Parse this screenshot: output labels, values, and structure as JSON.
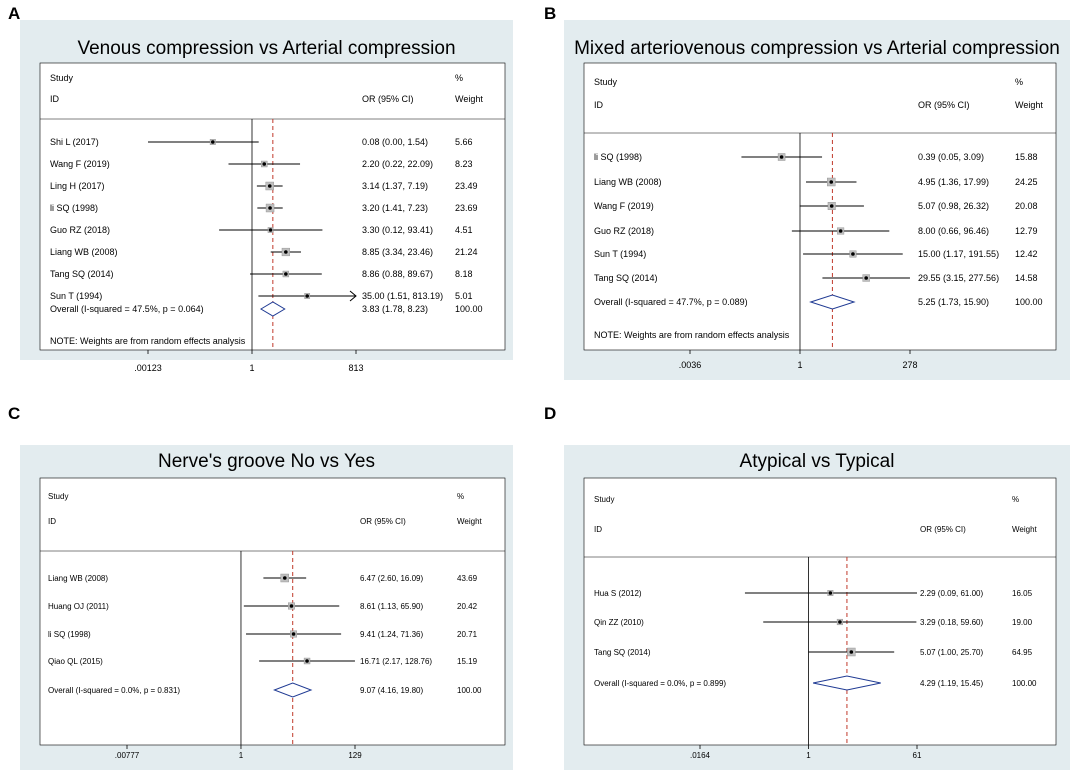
{
  "chart_data": [
    {
      "type": "forest",
      "panel_label": "A",
      "title": "Venous compression vs Arterial compression",
      "header": {
        "study": "Study",
        "id": "ID",
        "or_ci": "OR (95% CI)",
        "pct": "%",
        "weight": "Weight"
      },
      "studies": [
        {
          "name": "Shi L (2017)",
          "or": 0.08,
          "lo": 0.0,
          "hi": 1.54,
          "label": "0.08 (0.00, 1.54)",
          "weight": "5.66"
        },
        {
          "name": "Wang F (2019)",
          "or": 2.2,
          "lo": 0.22,
          "hi": 22.09,
          "label": "2.20 (0.22, 22.09)",
          "weight": "8.23"
        },
        {
          "name": "Ling H (2017)",
          "or": 3.14,
          "lo": 1.37,
          "hi": 7.19,
          "label": "3.14 (1.37, 7.19)",
          "weight": "23.49"
        },
        {
          "name": "li SQ (1998)",
          "or": 3.2,
          "lo": 1.41,
          "hi": 7.23,
          "label": "3.20 (1.41, 7.23)",
          "weight": "23.69"
        },
        {
          "name": "Guo RZ (2018)",
          "or": 3.3,
          "lo": 0.12,
          "hi": 93.41,
          "label": "3.30 (0.12, 93.41)",
          "weight": "4.51"
        },
        {
          "name": "Liang WB (2008)",
          "or": 8.85,
          "lo": 3.34,
          "hi": 23.46,
          "label": "8.85 (3.34, 23.46)",
          "weight": "21.24"
        },
        {
          "name": "Tang SQ (2014)",
          "or": 8.86,
          "lo": 0.88,
          "hi": 89.67,
          "label": "8.86 (0.88, 89.67)",
          "weight": "8.18"
        },
        {
          "name": "Sun T (1994)",
          "or": 35.0,
          "lo": 1.51,
          "hi": 813.19,
          "label": "35.00 (1.51, 813.19)",
          "weight": "5.01"
        }
      ],
      "overall": {
        "label": "Overall  (I-squared = 47.5%, p = 0.064)",
        "or": 3.83,
        "lo": 1.78,
        "hi": 8.23,
        "ci_label": "3.83 (1.78, 8.23)",
        "weight": "100.00"
      },
      "note": "NOTE: Weights are from random effects analysis",
      "axis": {
        "ticks": [
          0.00123,
          1,
          813
        ],
        "tick_labels": [
          ".00123",
          "1",
          "813"
        ],
        "min": 0.00123,
        "max": 813
      }
    },
    {
      "type": "forest",
      "panel_label": "B",
      "title": "Mixed arteriovenous compression vs Arterial compression",
      "header": {
        "study": "Study",
        "id": "ID",
        "or_ci": "OR (95% CI)",
        "pct": "%",
        "weight": "Weight"
      },
      "studies": [
        {
          "name": "li SQ (1998)",
          "or": 0.39,
          "lo": 0.05,
          "hi": 3.09,
          "label": "0.39 (0.05, 3.09)",
          "weight": "15.88"
        },
        {
          "name": "Liang WB (2008)",
          "or": 4.95,
          "lo": 1.36,
          "hi": 17.99,
          "label": "4.95 (1.36, 17.99)",
          "weight": "24.25"
        },
        {
          "name": "Wang F (2019)",
          "or": 5.07,
          "lo": 0.98,
          "hi": 26.32,
          "label": "5.07 (0.98, 26.32)",
          "weight": "20.08"
        },
        {
          "name": "Guo RZ (2018)",
          "or": 8.0,
          "lo": 0.66,
          "hi": 96.46,
          "label": "8.00 (0.66, 96.46)",
          "weight": "12.79"
        },
        {
          "name": "Sun T (1994)",
          "or": 15.0,
          "lo": 1.17,
          "hi": 191.55,
          "label": "15.00 (1.17, 191.55)",
          "weight": "12.42"
        },
        {
          "name": "Tang SQ (2014)",
          "or": 29.55,
          "lo": 3.15,
          "hi": 277.56,
          "label": "29.55 (3.15, 277.56)",
          "weight": "14.58"
        }
      ],
      "overall": {
        "label": "Overall  (I-squared = 47.7%, p = 0.089)",
        "or": 5.25,
        "lo": 1.73,
        "hi": 15.9,
        "ci_label": "5.25 (1.73, 15.90)",
        "weight": "100.00"
      },
      "note": "NOTE: Weights are from random effects analysis",
      "axis": {
        "ticks": [
          0.0036,
          1,
          278
        ],
        "tick_labels": [
          ".0036",
          "1",
          "278"
        ],
        "min": 0.0036,
        "max": 278
      }
    },
    {
      "type": "forest",
      "panel_label": "C",
      "title": "Nerve's groove  No vs Yes",
      "header": {
        "study": "Study",
        "id": "ID",
        "or_ci": "OR (95% CI)",
        "pct": "%",
        "weight": "Weight"
      },
      "studies": [
        {
          "name": "Liang WB (2008)",
          "or": 6.47,
          "lo": 2.6,
          "hi": 16.09,
          "label": "6.47 (2.60, 16.09)",
          "weight": "43.69"
        },
        {
          "name": "Huang OJ (2011)",
          "or": 8.61,
          "lo": 1.13,
          "hi": 65.9,
          "label": "8.61 (1.13, 65.90)",
          "weight": "20.42"
        },
        {
          "name": "li SQ (1998)",
          "or": 9.41,
          "lo": 1.24,
          "hi": 71.36,
          "label": "9.41 (1.24, 71.36)",
          "weight": "20.71"
        },
        {
          "name": "Qiao QL (2015)",
          "or": 16.71,
          "lo": 2.17,
          "hi": 128.76,
          "label": "16.71 (2.17, 128.76)",
          "weight": "15.19"
        }
      ],
      "overall": {
        "label": "Overall  (I-squared = 0.0%, p = 0.831)",
        "or": 9.07,
        "lo": 4.16,
        "hi": 19.8,
        "ci_label": "9.07 (4.16, 19.80)",
        "weight": "100.00"
      },
      "note": "",
      "axis": {
        "ticks": [
          0.00777,
          1,
          129
        ],
        "tick_labels": [
          ".00777",
          "1",
          "129"
        ],
        "min": 0.00777,
        "max": 129
      }
    },
    {
      "type": "forest",
      "panel_label": "D",
      "title": "Atypical vs Typical",
      "header": {
        "study": "Study",
        "id": "ID",
        "or_ci": "OR (95% CI)",
        "pct": "%",
        "weight": "Weight"
      },
      "studies": [
        {
          "name": "Hua S (2012)",
          "or": 2.29,
          "lo": 0.09,
          "hi": 61.0,
          "label": "2.29 (0.09, 61.00)",
          "weight": "16.05"
        },
        {
          "name": "Qin ZZ (2010)",
          "or": 3.29,
          "lo": 0.18,
          "hi": 59.6,
          "label": "3.29 (0.18, 59.60)",
          "weight": "19.00"
        },
        {
          "name": "Tang SQ (2014)",
          "or": 5.07,
          "lo": 1.0,
          "hi": 25.7,
          "label": "5.07 (1.00, 25.70)",
          "weight": "64.95"
        }
      ],
      "overall": {
        "label": "Overall  (I-squared = 0.0%, p = 0.899)",
        "or": 4.29,
        "lo": 1.19,
        "hi": 15.45,
        "ci_label": "4.29 (1.19, 15.45)",
        "weight": "100.00"
      },
      "note": "",
      "axis": {
        "ticks": [
          0.0164,
          1,
          61
        ],
        "tick_labels": [
          ".0164",
          "1",
          "61"
        ],
        "min": 0.0164,
        "max": 61
      }
    }
  ]
}
